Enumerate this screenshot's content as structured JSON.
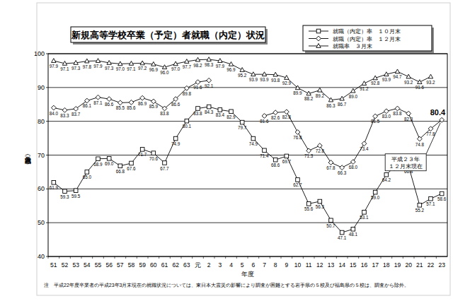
{
  "chart_data": {
    "type": "line",
    "title": "新規高等学校卒業（予定）者就職（内定）状況",
    "x_label": "年度",
    "y_label": "就職（内定）率（％）",
    "categories": [
      "51",
      "52",
      "53",
      "54",
      "55",
      "56",
      "57",
      "58",
      "59",
      "60",
      "61",
      "62",
      "63",
      "元",
      "2",
      "3",
      "4",
      "5",
      "6",
      "7",
      "8",
      "9",
      "10",
      "11",
      "12",
      "13",
      "14",
      "15",
      "16",
      "17",
      "18",
      "19",
      "20",
      "21",
      "22",
      "23"
    ],
    "series": [
      {
        "name": "就職（内定）率　１０月末",
        "color": "#000000",
        "marker": "square",
        "values": [
          61.9,
          59.3,
          59.5,
          65.0,
          68.9,
          69.0,
          66.8,
          67.6,
          71.7,
          70.6,
          67.7,
          74.9,
          80.1,
          83.8,
          84.3,
          83.4,
          82.9,
          79.7,
          74.9,
          71.4,
          68.6,
          69.7,
          62.7,
          55.6,
          56.3,
          50.7,
          47.1,
          48.1,
          53.1,
          59.0,
          64.2,
          67.4,
          66.8,
          55.2,
          57.1,
          58.6
        ]
      },
      {
        "name": "就職（内定）率　１２月末",
        "color": "#000000",
        "marker": "diamond",
        "values": [
          84.0,
          83.3,
          83.7,
          86.1,
          87.1,
          86.6,
          85.5,
          85.6,
          86.9,
          85.9,
          83.8,
          86.6,
          89.8,
          91.6,
          92.1,
          null,
          null,
          null,
          null,
          81.6,
          82.6,
          82.8,
          76.8,
          71.3,
          72.8,
          67.8,
          66.3,
          68.0,
          73.4,
          81.5,
          83.0,
          83.8,
          82.3,
          74.8,
          77.8,
          80.4
        ]
      },
      {
        "name": "就職率　３月末",
        "color": "#000000",
        "marker": "triangle",
        "values": [
          97.9,
          97.1,
          97.3,
          97.8,
          97.9,
          97.3,
          97.0,
          97.1,
          97.2,
          96.9,
          96.0,
          97.0,
          97.7,
          98.2,
          98.3,
          97.9,
          96.9,
          95.2,
          93.9,
          93.9,
          93.8,
          92.9,
          89.9,
          88.2,
          89.2,
          86.3,
          86.7,
          89.0,
          91.2,
          92.8,
          93.9,
          94.7,
          93.2,
          91.6,
          93.2,
          null
        ]
      }
    ],
    "ylim": [
      40,
      100
    ],
    "yticks": [
      40,
      50,
      60,
      70,
      80,
      90,
      100
    ],
    "grid": true,
    "legend": "top-right",
    "data_labels": true,
    "annotation": [
      "平成２３年",
      "１２月末現在"
    ],
    "note": "注　平成22年度卒業者の平成23年3月末現在の就職状況については、東日本大震災の影響により調査が困難とする岩手県の５校及び福島県の５校は、調査から除外。"
  }
}
